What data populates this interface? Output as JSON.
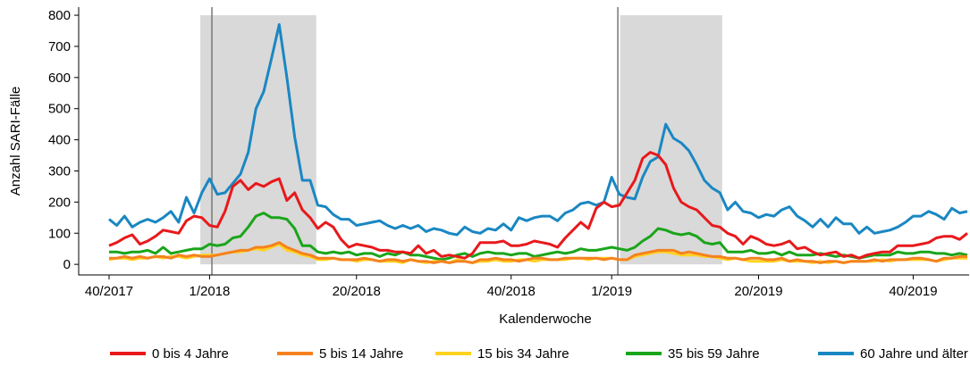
{
  "chart_data": {
    "type": "line",
    "xlabel": "Kalenderwoche",
    "ylabel": "Anzahl SARI-Fälle",
    "categories": [
      "40/2017",
      null,
      null,
      null,
      null,
      null,
      null,
      null,
      null,
      null,
      null,
      null,
      null,
      "1/2018",
      null,
      null,
      null,
      null,
      null,
      null,
      null,
      null,
      null,
      null,
      null,
      null,
      null,
      null,
      null,
      null,
      null,
      null,
      "20/2018",
      null,
      null,
      null,
      null,
      null,
      null,
      null,
      null,
      null,
      null,
      null,
      null,
      null,
      null,
      null,
      null,
      null,
      null,
      null,
      "40/2018",
      null,
      null,
      null,
      null,
      null,
      null,
      null,
      null,
      null,
      null,
      null,
      null,
      "1/2019",
      null,
      null,
      null,
      null,
      null,
      null,
      null,
      null,
      null,
      null,
      null,
      null,
      null,
      null,
      null,
      null,
      null,
      null,
      "20/2019",
      null,
      null,
      null,
      null,
      null,
      null,
      null,
      null,
      null,
      null,
      null,
      null,
      null,
      null,
      null,
      null,
      null,
      null,
      null,
      "40/2019",
      null,
      null,
      null,
      null,
      null,
      null,
      null
    ],
    "ylim": [
      -34,
      826
    ],
    "yticks": [
      0,
      100,
      200,
      300,
      400,
      500,
      600,
      700,
      800
    ],
    "shaded_periods": [
      [
        11.8,
        26.8
      ],
      [
        66.1,
        79.3
      ]
    ],
    "reference_lines": [
      13.3,
      65.8
    ],
    "series": [
      {
        "name": "0 bis 4 Jahre",
        "color": "#e8191b",
        "values": [
          60,
          70,
          85,
          95,
          65,
          75,
          90,
          110,
          105,
          100,
          140,
          155,
          150,
          125,
          120,
          170,
          250,
          270,
          240,
          260,
          250,
          265,
          275,
          205,
          230,
          175,
          150,
          115,
          135,
          120,
          80,
          55,
          65,
          60,
          55,
          45,
          45,
          40,
          40,
          35,
          60,
          35,
          45,
          25,
          30,
          25,
          20,
          35,
          70,
          70,
          70,
          75,
          60,
          60,
          65,
          75,
          70,
          65,
          55,
          85,
          110,
          135,
          115,
          180,
          200,
          185,
          190,
          230,
          270,
          340,
          360,
          350,
          320,
          245,
          200,
          185,
          175,
          150,
          125,
          120,
          100,
          90,
          65,
          90,
          80,
          65,
          60,
          65,
          75,
          50,
          55,
          40,
          30,
          35,
          40,
          25,
          30,
          20,
          30,
          35,
          40,
          40,
          60,
          60,
          60,
          65,
          70,
          85,
          90,
          90,
          80,
          100
        ]
      },
      {
        "name": "5 bis 14 Jahre",
        "color": "#f5821f",
        "values": [
          20,
          20,
          25,
          20,
          25,
          20,
          25,
          25,
          20,
          30,
          25,
          30,
          25,
          25,
          30,
          35,
          40,
          45,
          45,
          55,
          55,
          60,
          70,
          55,
          45,
          35,
          30,
          20,
          20,
          20,
          15,
          15,
          15,
          20,
          15,
          10,
          15,
          15,
          10,
          15,
          10,
          10,
          5,
          10,
          5,
          10,
          10,
          5,
          15,
          15,
          20,
          15,
          15,
          10,
          15,
          20,
          20,
          15,
          15,
          20,
          20,
          20,
          20,
          20,
          15,
          20,
          15,
          15,
          30,
          35,
          40,
          45,
          45,
          45,
          35,
          40,
          35,
          30,
          25,
          25,
          20,
          20,
          15,
          20,
          20,
          15,
          15,
          20,
          10,
          15,
          10,
          10,
          5,
          10,
          10,
          5,
          10,
          10,
          10,
          15,
          10,
          15,
          15,
          15,
          20,
          20,
          15,
          10,
          20,
          20,
          25,
          25
        ]
      },
      {
        "name": "15 bis 34 Jahre",
        "color": "#ffd21f",
        "values": [
          15,
          20,
          20,
          15,
          20,
          20,
          25,
          20,
          25,
          25,
          20,
          25,
          30,
          30,
          30,
          35,
          40,
          40,
          45,
          50,
          45,
          55,
          65,
          45,
          40,
          30,
          25,
          15,
          15,
          20,
          15,
          15,
          10,
          15,
          15,
          10,
          10,
          10,
          5,
          15,
          10,
          5,
          10,
          10,
          5,
          15,
          10,
          5,
          10,
          10,
          15,
          10,
          10,
          15,
          15,
          10,
          15,
          15,
          15,
          15,
          20,
          20,
          15,
          20,
          20,
          20,
          15,
          15,
          25,
          30,
          35,
          40,
          40,
          35,
          30,
          30,
          30,
          25,
          25,
          20,
          15,
          20,
          15,
          10,
          10,
          10,
          10,
          15,
          10,
          10,
          10,
          5,
          10,
          5,
          10,
          5,
          10,
          10,
          10,
          10,
          15,
          10,
          15,
          15,
          15,
          15,
          15,
          10,
          15,
          20,
          20,
          20
        ]
      },
      {
        "name": "35 bis 59 Jahre",
        "color": "#1aa51a",
        "values": [
          40,
          40,
          35,
          40,
          40,
          45,
          35,
          55,
          35,
          40,
          45,
          50,
          50,
          65,
          60,
          65,
          85,
          90,
          120,
          155,
          165,
          150,
          150,
          145,
          115,
          60,
          60,
          40,
          35,
          40,
          35,
          40,
          30,
          35,
          35,
          25,
          35,
          30,
          40,
          30,
          30,
          25,
          20,
          15,
          20,
          30,
          35,
          25,
          35,
          40,
          35,
          35,
          30,
          35,
          35,
          25,
          30,
          35,
          40,
          35,
          40,
          50,
          45,
          45,
          50,
          55,
          50,
          45,
          55,
          75,
          90,
          115,
          110,
          100,
          95,
          100,
          90,
          70,
          65,
          70,
          40,
          40,
          40,
          45,
          35,
          35,
          40,
          30,
          40,
          30,
          30,
          30,
          35,
          30,
          25,
          30,
          25,
          20,
          25,
          30,
          30,
          30,
          40,
          35,
          35,
          40,
          40,
          35,
          35,
          30,
          35,
          30
        ]
      },
      {
        "name": "60 Jahre und älter",
        "color": "#1a87c2",
        "values": [
          145,
          125,
          155,
          120,
          135,
          145,
          135,
          150,
          170,
          135,
          215,
          165,
          230,
          275,
          225,
          230,
          260,
          290,
          360,
          500,
          555,
          660,
          770,
          600,
          410,
          270,
          270,
          190,
          185,
          160,
          145,
          145,
          125,
          130,
          135,
          140,
          125,
          115,
          125,
          115,
          125,
          105,
          115,
          110,
          100,
          95,
          120,
          105,
          100,
          115,
          110,
          130,
          110,
          150,
          140,
          150,
          155,
          155,
          140,
          165,
          175,
          195,
          200,
          190,
          200,
          280,
          225,
          215,
          210,
          280,
          330,
          345,
          450,
          405,
          390,
          365,
          320,
          270,
          245,
          230,
          175,
          200,
          170,
          165,
          150,
          160,
          155,
          175,
          185,
          155,
          140,
          120,
          145,
          120,
          150,
          130,
          130,
          100,
          120,
          100,
          105,
          110,
          120,
          135,
          155,
          155,
          170,
          160,
          145,
          180,
          165,
          170
        ]
      }
    ]
  }
}
